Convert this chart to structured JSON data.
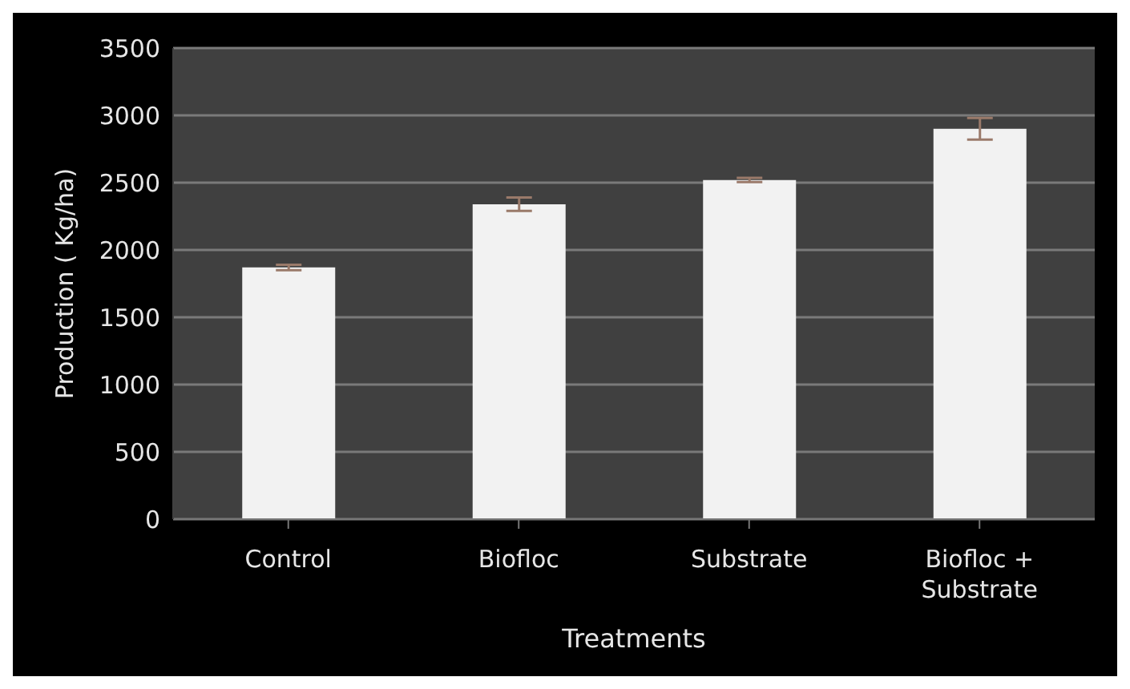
{
  "chart_data": {
    "type": "bar",
    "xlabel": "Treatments",
    "ylabel": "Production ( Kg/ha)",
    "categories": [
      "Control",
      "Biofloc",
      "Substrate",
      "Biofloc + Substrate"
    ],
    "values": [
      1870,
      2340,
      2520,
      2900
    ],
    "errors": [
      20,
      50,
      15,
      80
    ],
    "color": "#f2f2f2",
    "ylim": [
      0,
      3500
    ],
    "yticks": [
      0,
      500,
      1000,
      1500,
      2000,
      2500,
      3000,
      3500
    ],
    "grid": "y"
  }
}
